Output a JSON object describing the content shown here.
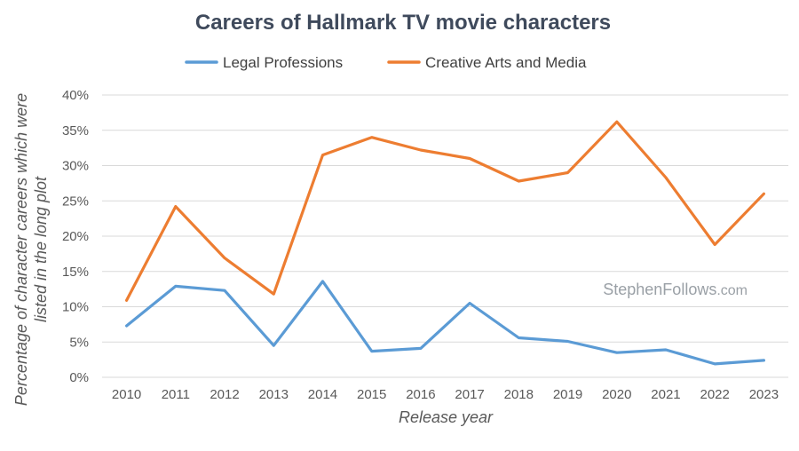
{
  "chart_data": {
    "type": "line",
    "title": "Careers of Hallmark TV movie characters",
    "xlabel": "Release year",
    "ylabel_lines": [
      "Percentage of character careers which were",
      "listed in the long plot"
    ],
    "categories": [
      "2010",
      "2011",
      "2012",
      "2013",
      "2014",
      "2015",
      "2016",
      "2017",
      "2018",
      "2019",
      "2020",
      "2021",
      "2022",
      "2023"
    ],
    "y_ticks": [
      "0%",
      "5%",
      "10%",
      "15%",
      "20%",
      "25%",
      "30%",
      "35%",
      "40%"
    ],
    "ylim": [
      0,
      40
    ],
    "y_unit": "percent",
    "grid": true,
    "legend_position": "top-center",
    "series": [
      {
        "name": "Legal Professions",
        "color": "#5b9bd5",
        "values": [
          7.3,
          12.9,
          12.3,
          4.5,
          13.6,
          3.7,
          4.1,
          10.5,
          5.6,
          5.1,
          3.5,
          3.9,
          1.9,
          2.4
        ]
      },
      {
        "name": "Creative Arts and Media",
        "color": "#ed7d31",
        "values": [
          10.9,
          24.2,
          16.9,
          11.8,
          31.5,
          34.0,
          32.2,
          31.0,
          27.8,
          29.0,
          36.2,
          28.3,
          18.8,
          26.0
        ]
      }
    ],
    "watermark": {
      "main": "StephenFollows",
      "suffix": ".com"
    }
  }
}
